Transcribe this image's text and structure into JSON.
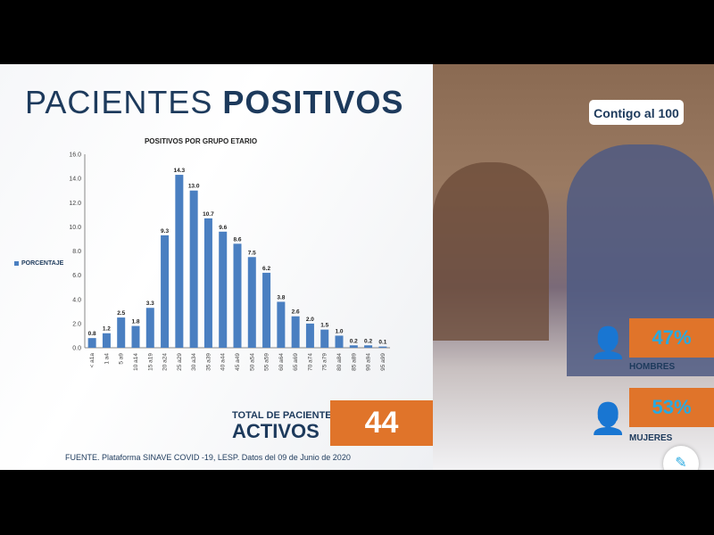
{
  "title": {
    "light": "PACIENTES ",
    "bold": "POSITIVOS"
  },
  "chart_data": {
    "type": "bar",
    "title": "POSITIVOS POR GRUPO ETARIO",
    "legend": "PORCENTAJE",
    "legend_position": "left",
    "categories": [
      "< a1a",
      "1 a4",
      "5 a9",
      "10 a14",
      "15 a19",
      "20 a24",
      "25 a29",
      "30 a34",
      "35 a39",
      "40 a44",
      "45 a49",
      "50 a54",
      "55 a59",
      "60 a64",
      "65 a69",
      "70 a74",
      "75 a79",
      "80 a84",
      "85 a89",
      "90 a94",
      "95 a99"
    ],
    "values": [
      0.8,
      1.2,
      2.5,
      1.8,
      3.3,
      9.3,
      14.3,
      13.0,
      10.7,
      9.6,
      8.6,
      7.5,
      6.2,
      3.8,
      2.6,
      2.0,
      1.5,
      1.0,
      0.2,
      0.2,
      0.1
    ],
    "ylim": [
      0,
      16
    ],
    "yticks": [
      "0.0",
      "2.0",
      "4.0",
      "6.0",
      "8.0",
      "10.0",
      "12.0",
      "14.0",
      "16.0"
    ],
    "color": "#4a7fc1",
    "grid": false
  },
  "total": {
    "label": "TOTAL DE PACIENTES",
    "activos": "ACTIVOS",
    "value": "44"
  },
  "source": "FUENTE. Plataforma SINAVE COVID -19, LESP. Datos del 09 de Junio de 2020",
  "logo": "Contigo al 100",
  "gender": [
    {
      "pct": "47%",
      "label": "HOMBRES",
      "icon": "man-icon"
    },
    {
      "pct": "53%",
      "label": "MUJERES",
      "icon": "woman-icon"
    }
  ],
  "colors": {
    "orange": "#e0742a",
    "navy": "#1d3a5c",
    "cyan": "#29a9e0"
  }
}
